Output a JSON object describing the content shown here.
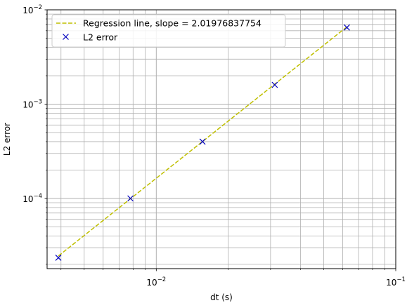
{
  "chart_data": {
    "type": "scatter",
    "xlabel": "dt (s)",
    "ylabel": "L2 error",
    "xscale": "log",
    "yscale": "log",
    "xlim": [
      0.0035,
      0.1
    ],
    "ylim": [
      1.8e-05,
      0.01
    ],
    "grid": "both-major-and-minor",
    "legend_position": "upper-left",
    "x_major_ticks": [
      {
        "value": 0.01,
        "base": "10",
        "exp": "−2"
      },
      {
        "value": 0.1,
        "base": "10",
        "exp": "−1"
      }
    ],
    "y_major_ticks": [
      {
        "value": 0.0001,
        "base": "10",
        "exp": "−4"
      },
      {
        "value": 0.001,
        "base": "10",
        "exp": "−3"
      },
      {
        "value": 0.01,
        "base": "10",
        "exp": "−2"
      }
    ],
    "series": [
      {
        "name": "Regression line, slope = 2.01976837754",
        "style": "dashed-line",
        "color": "#bfbf00",
        "x": [
          0.0039,
          0.0625
        ],
        "y": [
          2.45e-05,
          0.0066
        ]
      },
      {
        "name": "L2 error",
        "style": "x-markers",
        "color": "#0000bf",
        "x": [
          0.0039,
          0.0078,
          0.0156,
          0.03125,
          0.0625
        ],
        "y": [
          2.35e-05,
          0.0001,
          0.0004,
          0.0016,
          0.0065
        ]
      }
    ]
  }
}
